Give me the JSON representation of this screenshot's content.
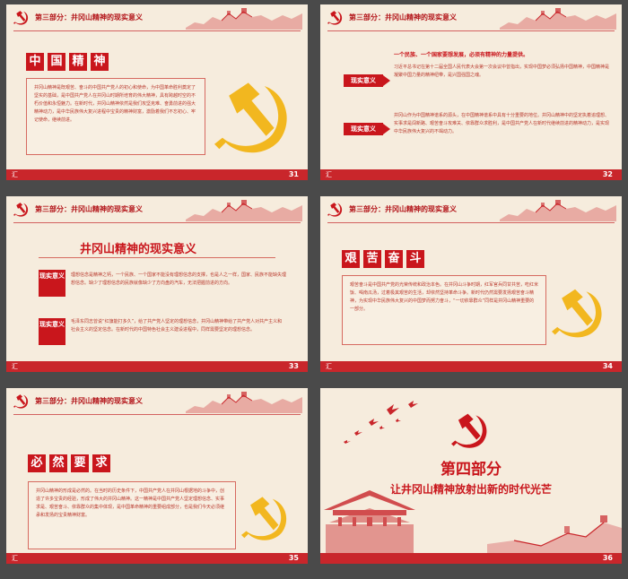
{
  "header_title": "第三部分：井冈山精神的现实意义",
  "footer_label": "汇",
  "slides": {
    "s31": {
      "number": "31",
      "heading_chars": [
        "中",
        "国",
        "精",
        "神"
      ],
      "body": "井冈山精神是既艰苦、奋斗的中国共产党人的初心和使命，为中国革命胜利奠定了坚实的基础，是中国共产党人在井冈山时期所培育的伟大精神，具有跨越时空的不朽价值和永恒魅力。在新时代，井冈山精神依然是我们攻坚克难、奋勇前进的强大精神动力，是中华民族伟大复兴进程中宝贵的精神财富，激励着我们不忘初心、牢记使命，继续前进。"
    },
    "s32": {
      "number": "32",
      "label1": "现实意义",
      "text1a": "一个民族、一个国家要想发展，必须有精神的力量提供。",
      "text1b": "习近平总书记在第十二届全国人民代表大会第一次会议中曾指出，实现中国梦必须弘扬中国精神，中国精神是凝聚中国力量的精神纽带，是兴国强国之魂。",
      "label2": "现实意义",
      "text2": "井冈山作为中国精神谱系的源头，在中国精神谱系中具有十分重要的地位。井冈山精神中的坚定执着追理想、实事求是闯新路、艰苦奋斗攻难关、依靠群众求胜利，是中国共产党人在新时代继续前进的精神动力，是实现中华民族伟大复兴的不竭动力。"
    },
    "s33": {
      "number": "33",
      "big_title": "井冈山精神的现实意义",
      "label1": "现实意义",
      "text1": "理想信念是精神之钙，一个民族、一个国家不能没有理想信念的支撑，也是人之一样，国家、民族不能缺失理想信念。缺少了理想信念的民族就像缺少了方向盘的汽车，无法把握前进的方向。",
      "label2": "现实意义",
      "text2": "毛泽东同志曾说“红旗能打多久”，给了共产党人坚定的理想信念，井冈山精神带给了共产党人对共产主义和社会主义的坚定信念。在新时代的中国特色社会主义建设进程中，同样需要坚定的理想信念。"
    },
    "s34": {
      "number": "34",
      "heading_chars": [
        "艰",
        "苦",
        "奋",
        "斗"
      ],
      "body": "艰苦奋斗是中国共产党的光荣传统和政治本色。在井冈山斗争时期，红军官兵同甘共苦，吃红米饭、喝南瓜汤，过着极其艰苦的生活，却依然坚持革命斗争。新时代仍然需要发扬艰苦奋斗精神，为实现中华民族伟大复兴的中国梦而努力奋斗，“一切依靠群众”同样是井冈山精神重要的一部分。"
    },
    "s35": {
      "number": "35",
      "heading_chars": [
        "必",
        "然",
        "要",
        "求"
      ],
      "body": "井冈山精神的形成是必然的。在当时的历史条件下，中国共产党人在井冈山根据地的斗争中，创造了许多宝贵的经验，形成了伟大的井冈山精神。这一精神是中国共产党人坚定理想信念、实事求是、艰苦奋斗、依靠群众的集中体现，是中国革命精神的重要组成部分，也是我们今天必须继承和发扬的宝贵精神财富。"
    },
    "s36": {
      "number": "36",
      "part_title": "第四部分",
      "subtitle": "让井冈山精神放射出新的时代光芒"
    }
  },
  "colors": {
    "red": "#c9161c",
    "bg": "#f6ecdd",
    "gold": "#f2b71f",
    "border": "#4a4a4a"
  }
}
